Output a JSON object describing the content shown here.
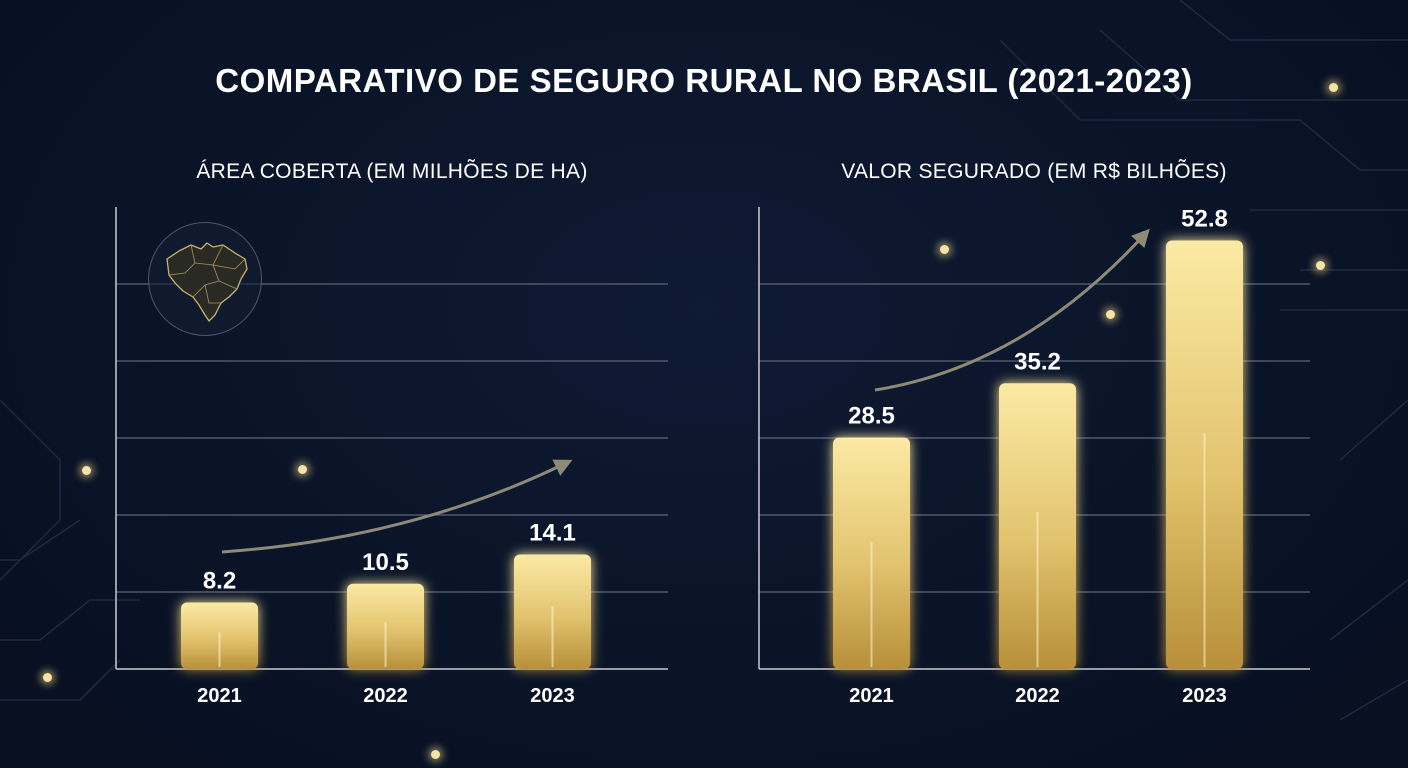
{
  "title": "COMPARATIVO DE SEGURO RURAL NO BRASIL (2021-2023)",
  "colors": {
    "background": "#0a1428",
    "bar_top": "#fbeaa4",
    "bar_bottom": "#b88f3a",
    "grid": "#5c6577",
    "axis": "#c8ccd4",
    "arrow": "#8e8a78"
  },
  "icons": {
    "map": "brazil-map-icon"
  },
  "chart_data": [
    {
      "type": "bar",
      "title": "ÁREA COBERTA (EM MILHÕES DE HA)",
      "categories": [
        "2021",
        "2022",
        "2023"
      ],
      "values": [
        8.2,
        10.5,
        14.1
      ],
      "value_labels": [
        "8.2",
        "10.5",
        "14.1"
      ],
      "ylim": [
        0,
        60
      ],
      "grid": true,
      "trend_arrow": true
    },
    {
      "type": "bar",
      "title": "VALOR SEGURADO (EM R$ BILHÕES)",
      "categories": [
        "2021",
        "2022",
        "2023"
      ],
      "values": [
        28.5,
        35.2,
        52.8
      ],
      "value_labels": [
        "28.5",
        "35.2",
        "52.8"
      ],
      "ylim": [
        0,
        60
      ],
      "grid": true,
      "trend_arrow": true
    }
  ]
}
